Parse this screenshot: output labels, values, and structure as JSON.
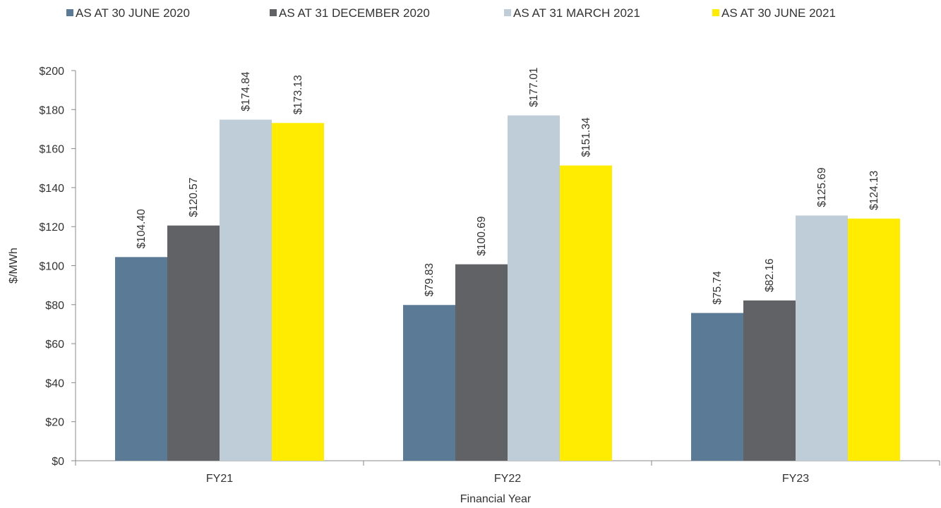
{
  "chart_data": {
    "type": "bar",
    "title": "",
    "xlabel": "Financial Year",
    "ylabel": "$/MWh",
    "ylim": [
      0,
      200
    ],
    "ytick_step": 20,
    "ytick_format": "$",
    "grid": false,
    "legend_position": "top",
    "categories": [
      "FY21",
      "FY22",
      "FY23"
    ],
    "series": [
      {
        "name": "AS AT 30 JUNE 2020",
        "color": "#5b7a95",
        "values": [
          104.4,
          79.83,
          75.74
        ],
        "labels": [
          "$104.40",
          "$79.83",
          "$75.74"
        ]
      },
      {
        "name": "AS AT 31 DECEMBER 2020",
        "color": "#616266",
        "values": [
          120.57,
          100.69,
          82.16
        ],
        "labels": [
          "$120.57",
          "$100.69",
          "$82.16"
        ]
      },
      {
        "name": "AS AT 31 MARCH 2021",
        "color": "#bfcdd8",
        "values": [
          174.84,
          177.01,
          125.69
        ],
        "labels": [
          "$174.84",
          "$177.01",
          "$125.69"
        ]
      },
      {
        "name": "AS AT 30 JUNE 2021",
        "color": "#ffec00",
        "values": [
          173.13,
          151.34,
          124.13
        ],
        "labels": [
          "$173.13",
          "$151.34",
          "$124.13"
        ]
      }
    ]
  }
}
